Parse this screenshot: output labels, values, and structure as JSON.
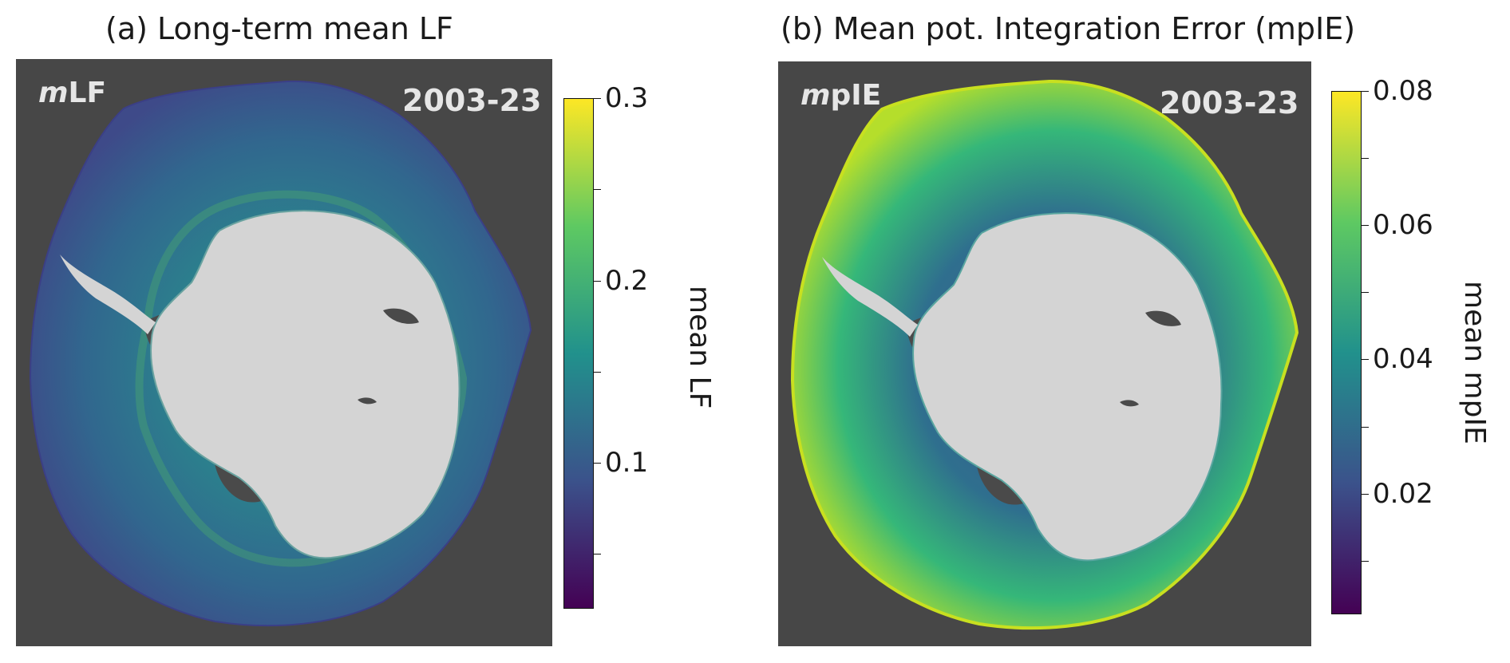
{
  "panels": [
    {
      "title": "(a) Long-term mean LF",
      "map_label_italic": "m",
      "map_label_rest": "LF",
      "period": "2003-23",
      "colorbar": {
        "label": "mean LF",
        "colormap": "viridis",
        "range": [
          0.02,
          0.3
        ],
        "ticks": [
          0.05,
          0.1,
          0.15,
          0.2,
          0.25,
          0.3
        ],
        "tick_labels": [
          "",
          "0.1",
          "",
          "0.2",
          "",
          "0.3"
        ]
      }
    },
    {
      "title": "(b) Mean pot. Integration Error (mpIE)",
      "map_label_italic": "m",
      "map_label_rest": "pIE",
      "period": "2003-23",
      "colorbar": {
        "label": "mean mpIE",
        "colormap": "viridis",
        "range": [
          0.002,
          0.08
        ],
        "ticks": [
          0.01,
          0.02,
          0.03,
          0.04,
          0.05,
          0.06,
          0.07,
          0.08
        ],
        "tick_labels": [
          "",
          "0.02",
          "",
          "0.04",
          "",
          "0.06",
          "",
          "0.08"
        ]
      }
    }
  ],
  "colors": {
    "background_panel": "#474747",
    "land": "#d4d4d4",
    "ice_shelf": "#4a4a4a",
    "viridis": [
      "#440154",
      "#3b528b",
      "#21918c",
      "#5ec962",
      "#fde725"
    ]
  }
}
